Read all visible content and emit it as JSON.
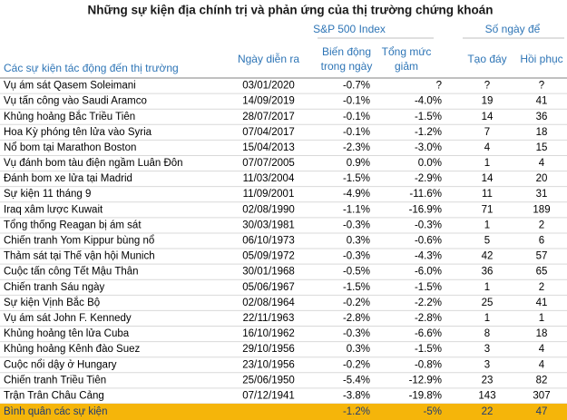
{
  "title": "Những sự kiện địa chính trị và phản ứng của thị trường chứng khoán",
  "table": {
    "group_headers": [
      "S&P 500 Index",
      "Số ngày để"
    ],
    "columns": [
      "Các sự kiện tác động đến thị trường",
      "Ngày diễn ra",
      "Biến động trong ngày",
      "Tổng mức giảm",
      "Tạo đáy",
      "Hồi phục"
    ],
    "rows": [
      [
        "Vụ ám sát Qasem Soleimani",
        "03/01/2020",
        "-0.7%",
        "?",
        "?",
        "?"
      ],
      [
        "Vụ tấn công vào Saudi Aramco",
        "14/09/2019",
        "-0.1%",
        "-4.0%",
        "19",
        "41"
      ],
      [
        "Khủng hoảng Bắc Triều Tiên",
        "28/07/2017",
        "-0.1%",
        "-1.5%",
        "14",
        "36"
      ],
      [
        "Hoa Kỳ phóng tên lửa vào Syria",
        "07/04/2017",
        "-0.1%",
        "-1.2%",
        "7",
        "18"
      ],
      [
        "Nổ bom tại Marathon Boston",
        "15/04/2013",
        "-2.3%",
        "-3.0%",
        "4",
        "15"
      ],
      [
        "Vụ đánh bom tàu điện ngầm Luân Đôn",
        "07/07/2005",
        "0.9%",
        "0.0%",
        "1",
        "4"
      ],
      [
        "Đánh bom xe lửa tại Madrid",
        "11/03/2004",
        "-1.5%",
        "-2.9%",
        "14",
        "20"
      ],
      [
        "Sự kiện 11 tháng 9",
        "11/09/2001",
        "-4.9%",
        "-11.6%",
        "11",
        "31"
      ],
      [
        "Iraq xâm lược Kuwait",
        "02/08/1990",
        "-1.1%",
        "-16.9%",
        "71",
        "189"
      ],
      [
        "Tổng thống Reagan bị ám sát",
        "30/03/1981",
        "-0.3%",
        "-0.3%",
        "1",
        "2"
      ],
      [
        "Chiến tranh Yom Kippur bùng nổ",
        "06/10/1973",
        "0.3%",
        "-0.6%",
        "5",
        "6"
      ],
      [
        "Thảm sát tại Thế vận hội Munich",
        "05/09/1972",
        "-0.3%",
        "-4.3%",
        "42",
        "57"
      ],
      [
        "Cuộc tấn công Tết Mậu Thân",
        "30/01/1968",
        "-0.5%",
        "-6.0%",
        "36",
        "65"
      ],
      [
        "Chiến tranh Sáu ngày",
        "05/06/1967",
        "-1.5%",
        "-1.5%",
        "1",
        "2"
      ],
      [
        "Sự kiện Vịnh Bắc Bộ",
        "02/08/1964",
        "-0.2%",
        "-2.2%",
        "25",
        "41"
      ],
      [
        "Vụ ám sát John F. Kennedy",
        "22/11/1963",
        "-2.8%",
        "-2.8%",
        "1",
        "1"
      ],
      [
        "Khủng hoảng tên lửa Cuba",
        "16/10/1962",
        "-0.3%",
        "-6.6%",
        "8",
        "18"
      ],
      [
        "Khủng hoảng Kênh đào Suez",
        "29/10/1956",
        "0.3%",
        "-1.5%",
        "3",
        "4"
      ],
      [
        "Cuộc nổi dậy ở Hungary",
        "23/10/1956",
        "-0.2%",
        "-0.8%",
        "3",
        "4"
      ],
      [
        "Chiến tranh Triều Tiên",
        "25/06/1950",
        "-5.4%",
        "-12.9%",
        "23",
        "82"
      ],
      [
        "Trận Trân Châu Cảng",
        "07/12/1941",
        "-3.8%",
        "-19.8%",
        "143",
        "307"
      ]
    ],
    "footer": [
      "Bình quân các sự kiện",
      "-1.2%",
      "-5%",
      "22",
      "47"
    ]
  }
}
